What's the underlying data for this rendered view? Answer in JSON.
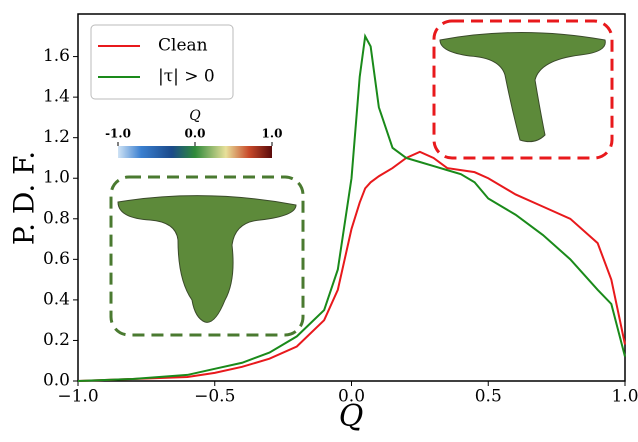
{
  "chart_data": {
    "type": "line",
    "xlabel": "Q",
    "ylabel": "P. D. F.",
    "x": [
      -1.0,
      -0.8,
      -0.6,
      -0.5,
      -0.4,
      -0.3,
      -0.2,
      -0.1,
      -0.05,
      0.0,
      0.03,
      0.05,
      0.07,
      0.1,
      0.15,
      0.2,
      0.25,
      0.3,
      0.35,
      0.4,
      0.45,
      0.5,
      0.55,
      0.6,
      0.7,
      0.8,
      0.9,
      0.95,
      1.0
    ],
    "series": [
      {
        "name": "Clean",
        "color": "#e8191c",
        "values": [
          0.0,
          0.01,
          0.02,
          0.04,
          0.07,
          0.11,
          0.17,
          0.3,
          0.45,
          0.75,
          0.88,
          0.95,
          0.98,
          1.01,
          1.05,
          1.1,
          1.13,
          1.1,
          1.05,
          1.04,
          1.03,
          1.0,
          0.96,
          0.92,
          0.86,
          0.8,
          0.68,
          0.5,
          0.18
        ]
      },
      {
        "name": "|τ| > 0",
        "color": "#1a8a1a",
        "values": [
          0.0,
          0.01,
          0.03,
          0.06,
          0.09,
          0.14,
          0.22,
          0.35,
          0.55,
          1.0,
          1.5,
          1.7,
          1.65,
          1.35,
          1.15,
          1.1,
          1.08,
          1.06,
          1.04,
          1.02,
          0.98,
          0.9,
          0.86,
          0.82,
          0.72,
          0.6,
          0.45,
          0.38,
          0.12
        ]
      }
    ],
    "xlim": [
      -1.0,
      1.0
    ],
    "ylim": [
      0,
      1.81
    ],
    "xticks": [
      {
        "value": -1.0,
        "label": "−1.0"
      },
      {
        "value": -0.5,
        "label": "−0.5"
      },
      {
        "value": 0,
        "label": "0.0"
      },
      {
        "value": 0.5,
        "label": "0.5"
      },
      {
        "value": 1.0,
        "label": "1.0"
      }
    ],
    "yticks": [
      {
        "value": 0,
        "label": "0.0"
      },
      {
        "value": 0.2,
        "label": "0.2"
      },
      {
        "value": 0.4,
        "label": "0.4"
      },
      {
        "value": 0.6,
        "label": "0.6"
      },
      {
        "value": 0.8,
        "label": "0.8"
      },
      {
        "value": 1.0,
        "label": "1.0"
      },
      {
        "value": 1.2,
        "label": "1.2"
      },
      {
        "value": 1.4,
        "label": "1.4"
      },
      {
        "value": 1.6,
        "label": "1.6"
      }
    ],
    "legend": "upper left",
    "colorbar": {
      "label": "Q",
      "ticks": [
        {
          "value": -1.0,
          "label": "-1.0"
        },
        {
          "value": 0.0,
          "label": "0.0"
        },
        {
          "value": 1.0,
          "label": "1.0"
        }
      ]
    }
  }
}
